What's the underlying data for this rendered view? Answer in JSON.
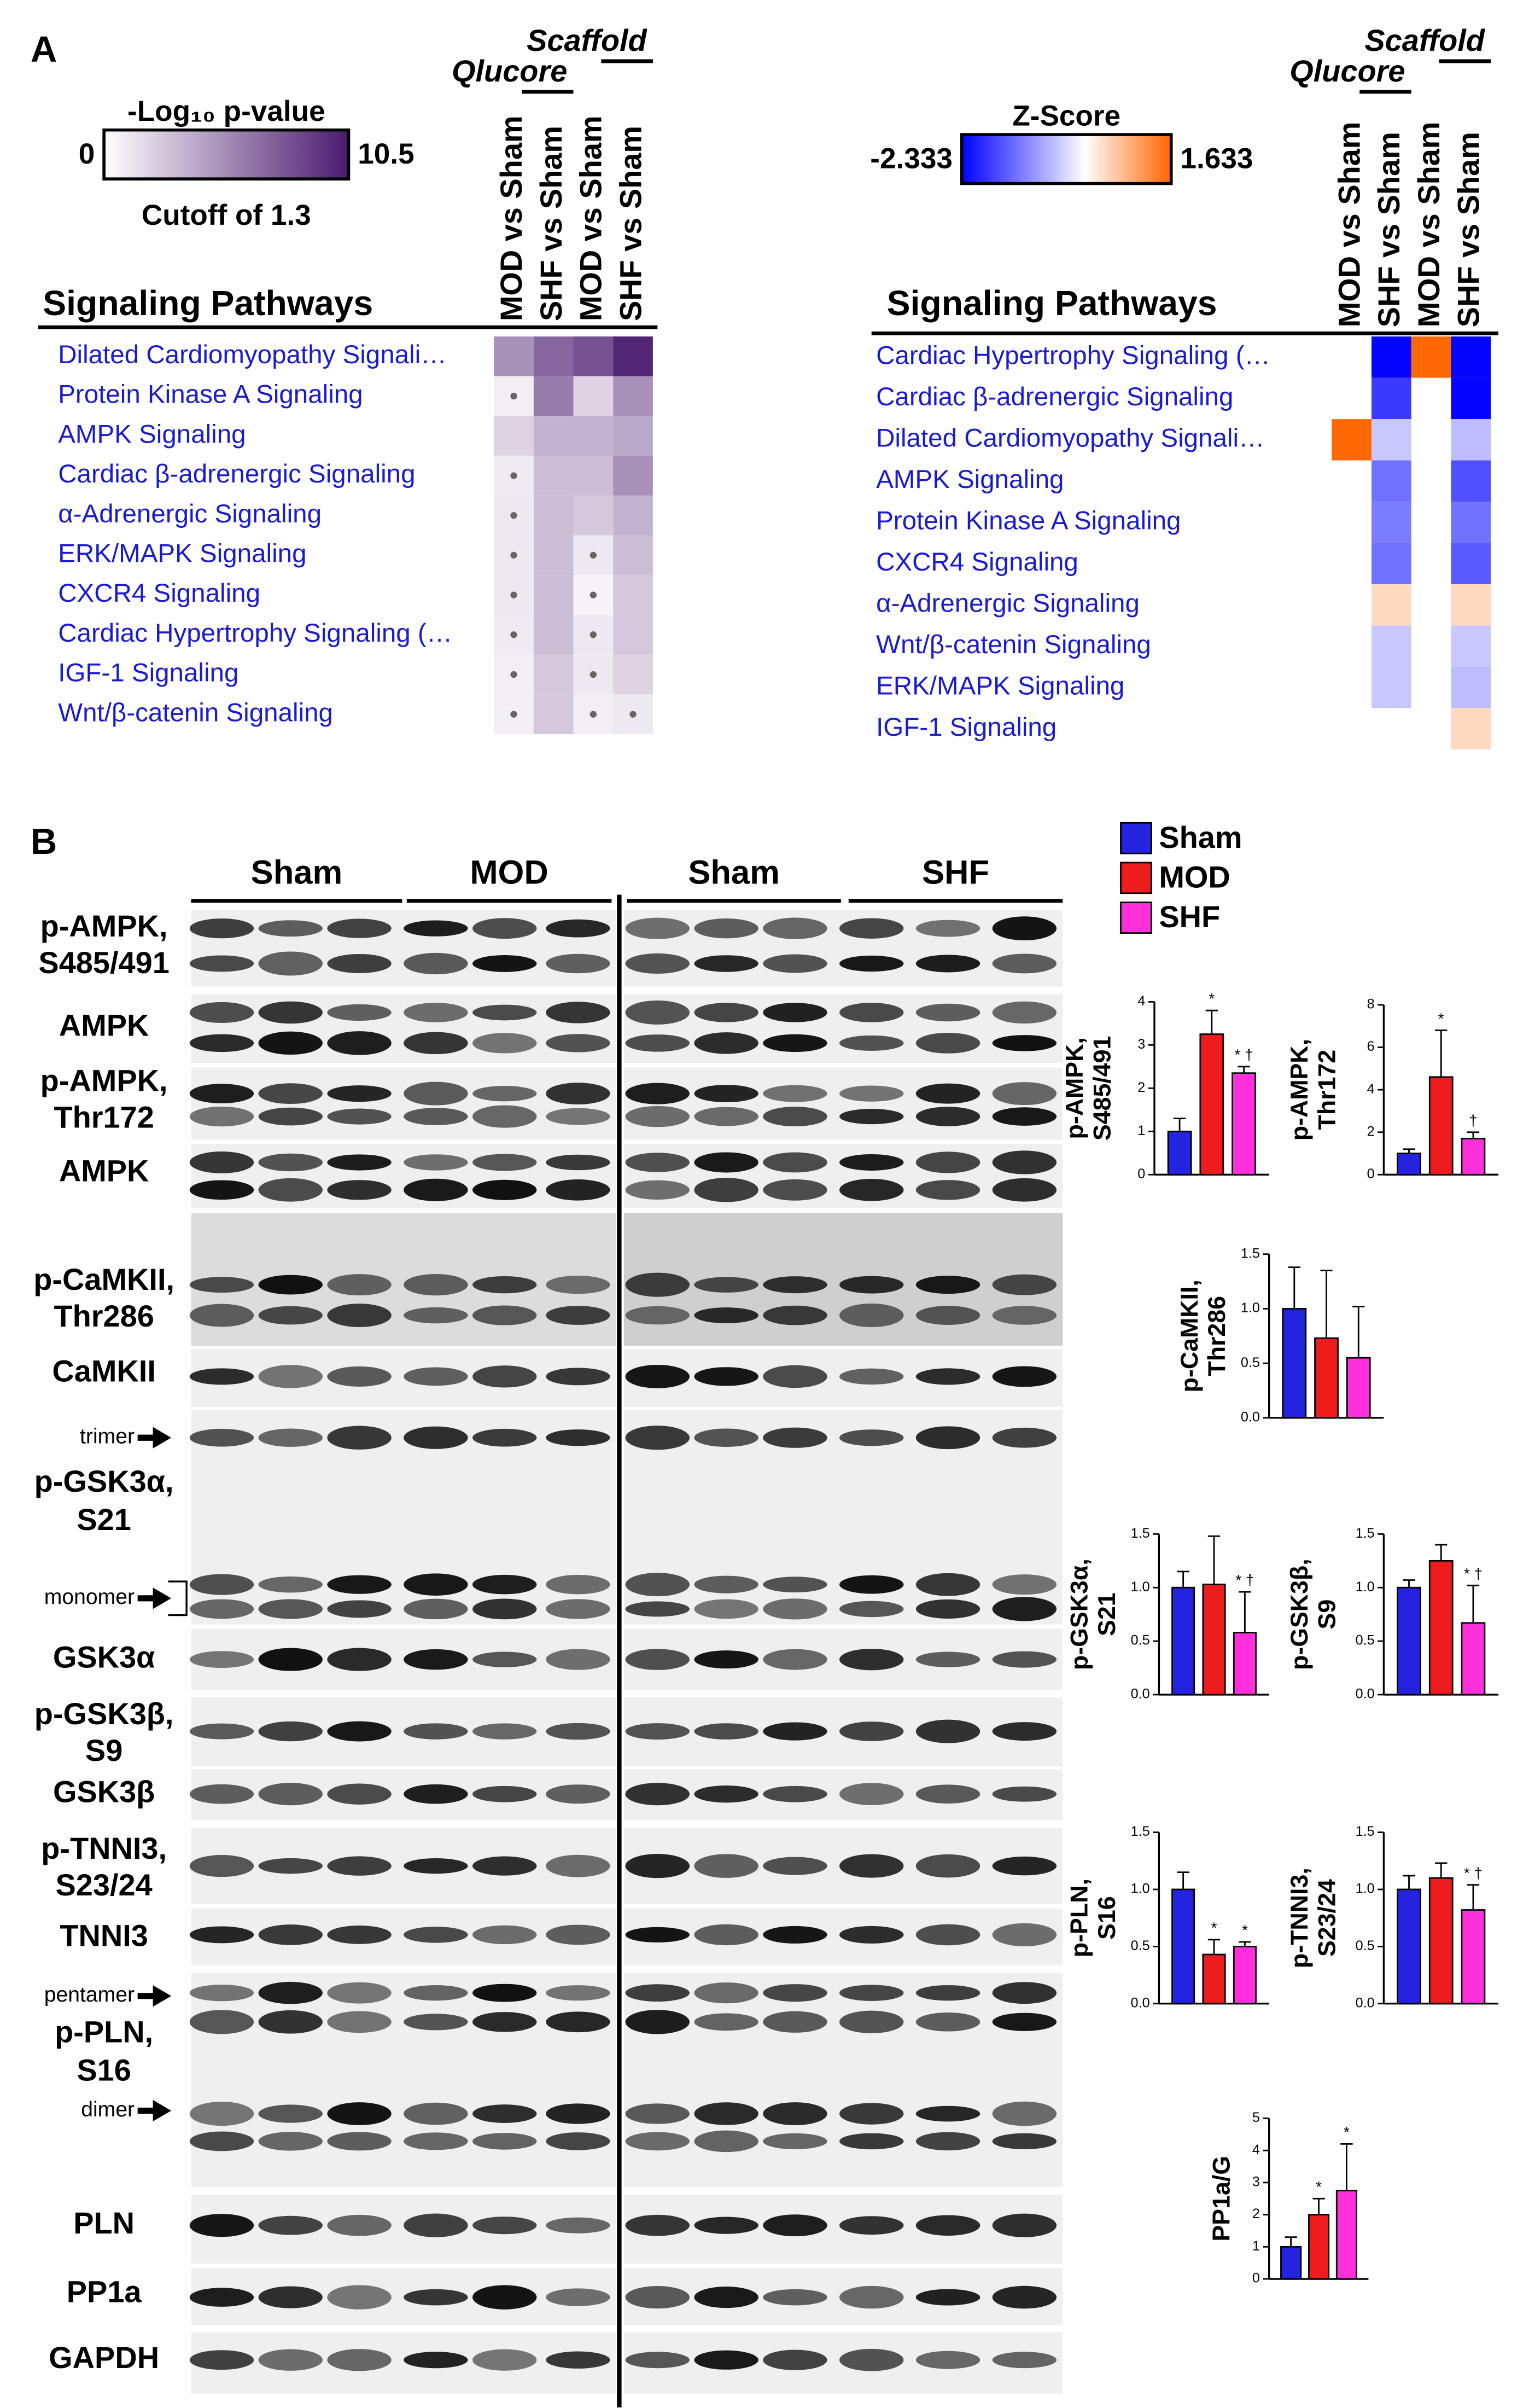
{
  "panel_labels": [
    "A",
    "B"
  ],
  "chart_data": [
    {
      "type": "heatmap",
      "title": "Signaling Pathways",
      "colorbar_title": "-Log₁₀ p-value",
      "colorbar_range": [
        0,
        10.5
      ],
      "colorbar_note": "Cutoff of 1.3",
      "cutoff": 1.3,
      "color_low": "#ffffff",
      "color_high": "#4a1a6e",
      "column_groups": [
        "Qlucore",
        "Scaffold"
      ],
      "columns": [
        "MOD vs Sham",
        "SHF vs Sham",
        "MOD vs Sham",
        "SHF vs Sham"
      ],
      "rows": [
        "Dilated Cardiomyopathy Signali…",
        "Protein Kinase A Signaling",
        "AMPK Signaling",
        "Cardiac β-adrenergic Signaling",
        "α-Adrenergic Signaling",
        "ERK/MAPK Signaling",
        "CXCR4 Signaling",
        "Cardiac Hypertrophy Signaling (…",
        "IGF-1 Signaling",
        "Wnt/β-catenin Signaling"
      ],
      "values": [
        [
          5,
          7,
          8,
          10
        ],
        [
          0.8,
          6,
          2,
          5
        ],
        [
          2,
          3.5,
          3.5,
          4
        ],
        [
          0.9,
          3,
          3,
          5
        ],
        [
          1,
          3,
          2.5,
          3.5
        ],
        [
          1,
          3,
          1,
          3
        ],
        [
          1,
          3,
          0.5,
          2.5
        ],
        [
          0.9,
          3,
          1,
          2.5
        ],
        [
          0.8,
          2.5,
          1,
          2
        ],
        [
          0.8,
          2.5,
          0.8,
          1
        ]
      ]
    },
    {
      "type": "heatmap",
      "title": "Signaling Pathways",
      "colorbar_title": "Z-Score",
      "colorbar_range": [
        -2.333,
        1.633
      ],
      "color_low": "#0000ff",
      "color_mid": "#ffffff",
      "color_high": "#ff6600",
      "column_groups": [
        "Qlucore",
        "Scaffold"
      ],
      "columns": [
        "MOD vs Sham",
        "SHF vs Sham",
        "MOD vs Sham",
        "SHF vs Sham"
      ],
      "rows": [
        "Cardiac Hypertrophy Signaling (…",
        "Cardiac β-adrenergic Signaling",
        "Dilated Cardiomyopathy Signali…",
        "AMPK Signaling",
        "Protein Kinase A Signaling",
        "CXCR4 Signaling",
        "α-Adrenergic Signaling",
        "Wnt/β-catenin Signaling",
        "ERK/MAPK Signaling",
        "IGF-1 Signaling"
      ],
      "values": [
        [
          null,
          -2.3,
          1.6,
          -2.3
        ],
        [
          null,
          -1.8,
          null,
          -2.3
        ],
        [
          1.6,
          -0.5,
          null,
          -0.6
        ],
        [
          null,
          -1.3,
          null,
          -1.6
        ],
        [
          null,
          -1.2,
          null,
          -1.3
        ],
        [
          null,
          -1.3,
          null,
          -1.5
        ],
        [
          null,
          0.4,
          null,
          0.4
        ],
        [
          null,
          -0.5,
          null,
          -0.5
        ],
        [
          null,
          -0.5,
          null,
          -0.6
        ],
        [
          null,
          null,
          null,
          0.4
        ]
      ]
    },
    {
      "type": "bar",
      "ylabel": [
        "p-AMPK,",
        "S485/491"
      ],
      "ylim": [
        0,
        4
      ],
      "yticks": [
        0,
        1,
        2,
        3,
        4
      ],
      "values": [
        1,
        3.25,
        2.35
      ],
      "errors": [
        0.3,
        0.55,
        0.15
      ],
      "annotations": [
        null,
        "*",
        "* †"
      ]
    },
    {
      "type": "bar",
      "ylabel": [
        "p-AMPK,",
        "Thr172"
      ],
      "ylim": [
        0,
        8
      ],
      "yticks": [
        0,
        2,
        4,
        6,
        8
      ],
      "values": [
        1,
        4.6,
        1.7
      ],
      "errors": [
        0.2,
        2.2,
        0.3
      ],
      "annotations": [
        null,
        "*",
        "†"
      ]
    },
    {
      "type": "bar",
      "ylabel": [
        "p-CaMKII,",
        "Thr286"
      ],
      "ylim": [
        0,
        1.5
      ],
      "yticks": [
        {
          "value": 0,
          "label": "0.0"
        },
        {
          "value": 0.5,
          "label": "0.5"
        },
        {
          "value": 1,
          "label": "1.0"
        },
        {
          "value": 1.5,
          "label": "1.5"
        }
      ],
      "values": [
        1.0,
        0.73,
        0.55
      ],
      "errors": [
        0.38,
        0.62,
        0.47
      ],
      "annotations": [
        null,
        null,
        null
      ]
    },
    {
      "type": "bar",
      "ylabel": [
        "p-GSK3α,",
        "S21"
      ],
      "ylim": [
        0,
        1.5
      ],
      "yticks": [
        {
          "value": 0,
          "label": "0.0"
        },
        {
          "value": 0.5,
          "label": "0.5"
        },
        {
          "value": 1,
          "label": "1.0"
        },
        {
          "value": 1.5,
          "label": "1.5"
        }
      ],
      "values": [
        1.0,
        1.03,
        0.58
      ],
      "errors": [
        0.15,
        0.45,
        0.38
      ],
      "annotations": [
        null,
        null,
        "* †"
      ]
    },
    {
      "type": "bar",
      "ylabel": [
        "p-GSK3β,",
        "S9"
      ],
      "ylim": [
        0,
        1.5
      ],
      "yticks": [
        {
          "value": 0,
          "label": "0.0"
        },
        {
          "value": 0.5,
          "label": "0.5"
        },
        {
          "value": 1,
          "label": "1.0"
        },
        {
          "value": 1.5,
          "label": "1.5"
        }
      ],
      "values": [
        1.0,
        1.25,
        0.67
      ],
      "errors": [
        0.07,
        0.15,
        0.35
      ],
      "annotations": [
        null,
        null,
        "* †"
      ]
    },
    {
      "type": "bar",
      "ylabel": [
        "p-PLN,",
        "S16"
      ],
      "ylim": [
        0,
        1.5
      ],
      "yticks": [
        {
          "value": 0,
          "label": "0.0"
        },
        {
          "value": 0.5,
          "label": "0.5"
        },
        {
          "value": 1,
          "label": "1.0"
        },
        {
          "value": 1.5,
          "label": "1.5"
        }
      ],
      "values": [
        1.0,
        0.43,
        0.5
      ],
      "errors": [
        0.15,
        0.13,
        0.04
      ],
      "annotations": [
        null,
        "*",
        "*"
      ]
    },
    {
      "type": "bar",
      "ylabel": [
        "p-TNNI3,",
        "S23/24"
      ],
      "ylim": [
        0,
        1.5
      ],
      "yticks": [
        {
          "value": 0,
          "label": "0.0"
        },
        {
          "value": 0.5,
          "label": "0.5"
        },
        {
          "value": 1,
          "label": "1.0"
        },
        {
          "value": 1.5,
          "label": "1.5"
        }
      ],
      "values": [
        1.0,
        1.1,
        0.82
      ],
      "errors": [
        0.12,
        0.13,
        0.22
      ],
      "annotations": [
        null,
        null,
        "* †"
      ]
    },
    {
      "type": "bar",
      "ylabel": [
        "PP1a/G"
      ],
      "ylim": [
        0,
        5
      ],
      "yticks": [
        0,
        1,
        2,
        3,
        4,
        5
      ],
      "values": [
        1.0,
        2.0,
        2.75
      ],
      "errors": [
        0.3,
        0.5,
        1.45
      ],
      "annotations": [
        null,
        "*",
        "*"
      ]
    }
  ],
  "legend": [
    {
      "name": "Sham",
      "color": "#2424e0"
    },
    {
      "name": "MOD",
      "color": "#ee1c1c"
    },
    {
      "name": "SHF",
      "color": "#ff30dc"
    }
  ],
  "blot": {
    "groups": [
      "Sham",
      "MOD",
      "Sham",
      "SHF"
    ],
    "rows": [
      [
        "p-AMPK,",
        "S485/491"
      ],
      [
        "AMPK"
      ],
      [
        "p-AMPK,",
        "Thr172"
      ],
      [
        "AMPK"
      ],
      [
        "p-CaMKII,",
        "Thr286"
      ],
      [
        "CaMKII"
      ],
      [
        "p-GSK3α,",
        "S21"
      ],
      [
        "GSK3α"
      ],
      [
        "p-GSK3β,",
        "S9"
      ],
      [
        "GSK3β"
      ],
      [
        "p-TNNI3,",
        "S23/24"
      ],
      [
        "TNNI3"
      ],
      [
        "p-PLN,",
        "S16"
      ],
      [
        "PLN"
      ],
      [
        "PP1a"
      ],
      [
        "GAPDH"
      ]
    ],
    "markers": [
      "trimer",
      "monomer",
      "pentamer",
      "dimer"
    ]
  }
}
